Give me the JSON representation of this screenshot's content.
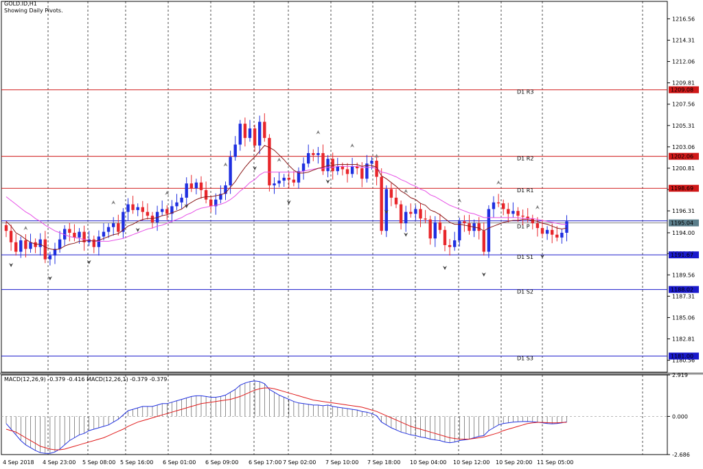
{
  "symbol_line": "GOLD.ID,H1",
  "subtitle": "Showing Daily Pivots.",
  "colors": {
    "bull": "#1f2fe0",
    "bear": "#e8262b",
    "resistance": "#d01818",
    "support": "#1a1acc",
    "ma_fast": "#8b1a1a",
    "ma_slow": "#e64fe6",
    "macd": "#2030e0",
    "signal": "#e01818",
    "current_price": "#5a7d8a"
  },
  "chart_data": [
    {
      "type": "candlestick",
      "symbol": "GOLD.ID",
      "timeframe": "H1",
      "ylim": [
        1179.3,
        1218.4
      ],
      "price_ticks": [
        "1216.56",
        "1214.31",
        "1212.06",
        "1209.81",
        "1207.56",
        "1205.31",
        "1203.06",
        "1200.81",
        "1198.56",
        "1196.31",
        "1194.00",
        "1191.81",
        "1189.56",
        "1187.31",
        "1185.06",
        "1182.81",
        "1180.56"
      ],
      "pivots": [
        {
          "name": "D1 R3",
          "value": 1209.08,
          "label": "1209.08",
          "kind": "resistance"
        },
        {
          "name": "D1 R2",
          "value": 1202.06,
          "label": "1202.06",
          "kind": "resistance"
        },
        {
          "name": "D1 R1",
          "value": 1198.69,
          "label": "1198.69",
          "kind": "resistance"
        },
        {
          "name": "D1 P",
          "value": 1195.04,
          "label": "1195.04",
          "kind": "current"
        },
        {
          "name": "D1 S1",
          "value": 1191.67,
          "label": "1191.67",
          "kind": "support"
        },
        {
          "name": "D1 S2",
          "value": 1188.02,
          "label": "1188.02",
          "kind": "support"
        },
        {
          "name": "D1 S3",
          "value": 1181.0,
          "label": "1181.00",
          "kind": "support"
        }
      ],
      "current_price": 1195.04,
      "time_labels": [
        "4 Sep 2018",
        "4 Sep 23:00",
        "5 Sep 08:00",
        "5 Sep 16:00",
        "6 Sep 01:00",
        "6 Sep 09:00",
        "6 Sep 17:00",
        "7 Sep 02:00",
        "7 Sep 10:00",
        "7 Sep 18:00",
        "10 Sep 04:00",
        "10 Sep 12:00",
        "10 Sep 20:00",
        "11 Sep 05:00"
      ],
      "closes": [
        1194.2,
        1193.0,
        1192.0,
        1193.2,
        1192.3,
        1193.0,
        1192.5,
        1193.3,
        1191.2,
        1191.6,
        1192.3,
        1193.3,
        1194.4,
        1194.0,
        1193.5,
        1194.1,
        1193.0,
        1193.3,
        1192.5,
        1193.6,
        1194.1,
        1194.6,
        1195.0,
        1194.1,
        1196.2,
        1197.0,
        1196.4,
        1196.7,
        1196.2,
        1195.8,
        1195.1,
        1196.2,
        1196.5,
        1196.0,
        1196.8,
        1197.2,
        1197.7,
        1199.2,
        1198.7,
        1199.3,
        1198.5,
        1197.5,
        1196.8,
        1197.5,
        1198.1,
        1199.0,
        1202.0,
        1203.3,
        1205.5,
        1204.0,
        1205.0,
        1203.2,
        1205.7,
        1204.0,
        1199.0,
        1199.2,
        1199.5,
        1199.8,
        1199.6,
        1199.3,
        1200.5,
        1201.3,
        1202.4,
        1202.2,
        1202.4,
        1200.5,
        1201.8,
        1200.5,
        1201.0,
        1200.7,
        1200.2,
        1201.0,
        1200.8,
        1199.7,
        1201.3,
        1201.6,
        1199.9,
        1194.2,
        1198.6,
        1197.7,
        1197.0,
        1195.0,
        1196.2,
        1196.0,
        1196.5,
        1195.5,
        1195.4,
        1193.4,
        1195.1,
        1194.3,
        1192.7,
        1192.5,
        1193.2,
        1195.2,
        1195.0,
        1194.2,
        1195.0,
        1194.2,
        1192.0,
        1196.5,
        1197.2,
        1197.1,
        1196.5,
        1196.0,
        1196.3,
        1195.8,
        1195.7,
        1195.5,
        1195.0,
        1194.5,
        1193.9,
        1194.3,
        1193.8,
        1193.5,
        1194.0,
        1195.2
      ],
      "sma_fast": [
        1195.2,
        1194.7,
        1194.0,
        1193.7,
        1193.3,
        1193.0,
        1192.8,
        1192.8,
        1192.5,
        1192.3,
        1192.2,
        1192.3,
        1192.6,
        1192.8,
        1192.9,
        1193.1,
        1193.1,
        1193.2,
        1193.1,
        1193.2,
        1193.4,
        1193.6,
        1193.8,
        1193.9,
        1194.3,
        1194.7,
        1194.9,
        1195.2,
        1195.4,
        1195.5,
        1195.5,
        1195.6,
        1195.8,
        1195.9,
        1196.1,
        1196.3,
        1196.5,
        1196.9,
        1197.2,
        1197.5,
        1197.7,
        1197.8,
        1197.8,
        1197.9,
        1198.0,
        1198.2,
        1198.8,
        1199.4,
        1200.2,
        1200.9,
        1201.5,
        1202.0,
        1202.6,
        1203.2,
        1203.0,
        1202.7,
        1202.2,
        1201.7,
        1201.1,
        1200.6,
        1200.3,
        1200.3,
        1200.4,
        1200.6,
        1200.8,
        1200.9,
        1201.1,
        1201.1,
        1201.2,
        1201.2,
        1201.2,
        1201.2,
        1201.2,
        1201.0,
        1201.1,
        1201.1,
        1200.9,
        1200.0,
        1199.7,
        1199.3,
        1198.9,
        1198.4,
        1198.1,
        1197.7,
        1197.5,
        1197.1,
        1196.9,
        1196.4,
        1196.2,
        1195.9,
        1195.5,
        1195.1,
        1194.9,
        1194.9,
        1194.8,
        1194.7,
        1194.6,
        1194.5,
        1194.2,
        1194.5,
        1194.7,
        1194.9,
        1195.1,
        1195.2,
        1195.3,
        1195.3,
        1195.4,
        1195.4,
        1195.3,
        1195.2,
        1195.0,
        1194.9,
        1194.7,
        1194.5,
        1194.4,
        1194.5
      ],
      "sma_slow": [
        1197.8,
        1197.4,
        1197.0,
        1196.6,
        1196.2,
        1195.9,
        1195.5,
        1195.2,
        1194.8,
        1194.5,
        1194.2,
        1194.0,
        1193.8,
        1193.6,
        1193.5,
        1193.4,
        1193.3,
        1193.2,
        1193.1,
        1193.1,
        1193.1,
        1193.1,
        1193.2,
        1193.3,
        1193.4,
        1193.6,
        1193.8,
        1194.0,
        1194.2,
        1194.4,
        1194.5,
        1194.7,
        1194.8,
        1195.0,
        1195.2,
        1195.4,
        1195.6,
        1195.9,
        1196.1,
        1196.4,
        1196.6,
        1196.7,
        1196.8,
        1196.9,
        1197.0,
        1197.2,
        1197.5,
        1197.9,
        1198.4,
        1198.8,
        1199.3,
        1199.6,
        1200.1,
        1200.4,
        1200.4,
        1200.4,
        1200.4,
        1200.4,
        1200.4,
        1200.4,
        1200.4,
        1200.5,
        1200.6,
        1200.7,
        1200.8,
        1200.8,
        1200.9,
        1200.9,
        1201.0,
        1201.0,
        1201.0,
        1201.0,
        1201.0,
        1200.9,
        1200.9,
        1200.9,
        1200.8,
        1200.4,
        1200.3,
        1200.1,
        1199.9,
        1199.6,
        1199.4,
        1199.1,
        1198.9,
        1198.6,
        1198.4,
        1198.0,
        1197.8,
        1197.5,
        1197.2,
        1196.9,
        1196.7,
        1196.5,
        1196.3,
        1196.1,
        1196.0,
        1195.8,
        1195.6,
        1195.6,
        1195.6,
        1195.6,
        1195.6,
        1195.6,
        1195.6,
        1195.6,
        1195.5,
        1195.5,
        1195.5,
        1195.4,
        1195.3,
        1195.2,
        1195.1,
        1195.0,
        1194.9,
        1194.9
      ],
      "fractals_up": [
        4,
        22,
        33,
        45,
        56,
        64,
        71,
        76,
        82,
        93,
        101,
        109
      ],
      "fractals_down": [
        1,
        9,
        17,
        27,
        37,
        51,
        58,
        66,
        78,
        82,
        90,
        98,
        110
      ]
    },
    {
      "type": "line",
      "title": "MACD(12,26,9) -0.379 -0.416 MACD(12,26,1) -0.379 -0.379",
      "ylim": [
        -2.686,
        2.919
      ],
      "ticks": [
        "2.919",
        "0.000",
        "-2.686"
      ],
      "series": [
        {
          "name": "MACD(12,26,9)",
          "values": [
            -0.5,
            -0.9,
            -1.3,
            -1.7,
            -2.0,
            -2.2,
            -2.4,
            -2.55,
            -2.6,
            -2.6,
            -2.5,
            -2.3,
            -2.0,
            -1.7,
            -1.5,
            -1.3,
            -1.2,
            -1.0,
            -0.9,
            -0.8,
            -0.7,
            -0.6,
            -0.4,
            -0.2,
            0.1,
            0.4,
            0.5,
            0.6,
            0.7,
            0.7,
            0.7,
            0.8,
            0.9,
            0.9,
            1.0,
            1.1,
            1.2,
            1.3,
            1.4,
            1.45,
            1.45,
            1.4,
            1.35,
            1.35,
            1.4,
            1.5,
            1.7,
            1.9,
            2.2,
            2.35,
            2.45,
            2.5,
            2.45,
            2.3,
            1.9,
            1.7,
            1.5,
            1.35,
            1.2,
            1.05,
            0.95,
            0.9,
            0.85,
            0.8,
            0.8,
            0.75,
            0.8,
            0.7,
            0.65,
            0.6,
            0.55,
            0.5,
            0.45,
            0.35,
            0.3,
            0.2,
            0.05,
            -0.4,
            -0.6,
            -0.8,
            -0.95,
            -1.1,
            -1.2,
            -1.3,
            -1.35,
            -1.45,
            -1.5,
            -1.6,
            -1.65,
            -1.7,
            -1.8,
            -1.85,
            -1.8,
            -1.7,
            -1.65,
            -1.6,
            -1.5,
            -1.4,
            -1.35,
            -1.0,
            -0.8,
            -0.6,
            -0.5,
            -0.45,
            -0.4,
            -0.38,
            -0.36,
            -0.35,
            -0.38,
            -0.4,
            -0.45,
            -0.5,
            -0.52,
            -0.5,
            -0.45,
            -0.38
          ]
        },
        {
          "name": "Signal",
          "values": [
            -0.9,
            -1.0,
            -1.1,
            -1.3,
            -1.5,
            -1.7,
            -1.9,
            -2.1,
            -2.2,
            -2.3,
            -2.35,
            -2.35,
            -2.3,
            -2.2,
            -2.1,
            -2.0,
            -1.9,
            -1.8,
            -1.7,
            -1.6,
            -1.5,
            -1.35,
            -1.2,
            -1.05,
            -0.9,
            -0.7,
            -0.55,
            -0.4,
            -0.3,
            -0.2,
            -0.1,
            0.0,
            0.1,
            0.2,
            0.3,
            0.4,
            0.5,
            0.6,
            0.7,
            0.8,
            0.9,
            0.95,
            1.0,
            1.05,
            1.1,
            1.15,
            1.2,
            1.3,
            1.4,
            1.55,
            1.7,
            1.85,
            1.95,
            2.0,
            2.0,
            1.95,
            1.85,
            1.75,
            1.65,
            1.55,
            1.45,
            1.35,
            1.25,
            1.15,
            1.1,
            1.05,
            1.0,
            0.95,
            0.9,
            0.85,
            0.8,
            0.75,
            0.7,
            0.65,
            0.55,
            0.45,
            0.35,
            0.2,
            0.05,
            -0.1,
            -0.25,
            -0.4,
            -0.55,
            -0.7,
            -0.8,
            -0.9,
            -1.0,
            -1.1,
            -1.2,
            -1.3,
            -1.4,
            -1.5,
            -1.55,
            -1.6,
            -1.6,
            -1.6,
            -1.55,
            -1.5,
            -1.45,
            -1.35,
            -1.25,
            -1.15,
            -1.0,
            -0.9,
            -0.8,
            -0.7,
            -0.6,
            -0.5,
            -0.45,
            -0.42,
            -0.42,
            -0.44,
            -0.45,
            -0.45,
            -0.43,
            -0.416
          ]
        }
      ]
    }
  ]
}
